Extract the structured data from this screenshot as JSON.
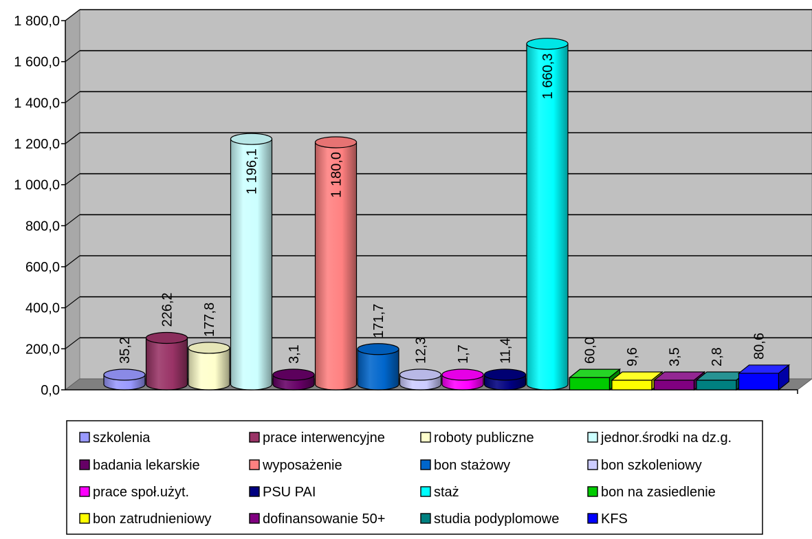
{
  "chart_data": {
    "type": "bar",
    "categories": [
      "szkolenia",
      "prace interwencyjne",
      "roboty publiczne",
      "jednor.środki na dz.g.",
      "badania lekarskie",
      "wyposażenie",
      "bon stażowy",
      "bon szkoleniowy",
      "prace społ.użyt.",
      "PSU PAI",
      "staż",
      "bon na zasiedlenie",
      "bon zatrudnieniowy",
      "dofinansowanie 50+",
      "studia podyplomowe",
      "KFS"
    ],
    "values": [
      35.2,
      226.2,
      177.8,
      1196.1,
      3.1,
      1180.0,
      171.7,
      12.3,
      1.7,
      11.4,
      1660.3,
      60.0,
      9.6,
      3.5,
      2.8,
      80.6
    ],
    "data_labels": [
      "35,2",
      "226,2",
      "177,8",
      "1 196,1",
      "3,1",
      "1 180,0",
      "171,7",
      "12,3",
      "1,7",
      "11,4",
      "1 660,3",
      "60,0",
      "9,6",
      "3,5",
      "2,8",
      "80,6"
    ],
    "shapes": [
      "cylinder",
      "cylinder",
      "cylinder",
      "cylinder",
      "cylinder",
      "cylinder",
      "cylinder",
      "cylinder",
      "cylinder",
      "cylinder",
      "cylinder",
      "box",
      "box",
      "box",
      "box",
      "box"
    ],
    "colors": [
      "#9999FF",
      "#993366",
      "#FFFFCC",
      "#CCFFFF",
      "#660066",
      "#FF8080",
      "#0066CC",
      "#CCCCFF",
      "#FF00FF",
      "#000080",
      "#00FFFF",
      "#00CC00",
      "#FFFF00",
      "#800080",
      "#008080",
      "#0000FF"
    ],
    "ytick_labels": [
      "0,0",
      "200,0",
      "400,0",
      "600,0",
      "800,0",
      "1 000,0",
      "1 200,0",
      "1 400,0",
      "1 600,0",
      "1 800,0"
    ],
    "ylim": [
      0,
      1800
    ],
    "grid": true,
    "legend_position": "bottom",
    "title": "",
    "xlabel": "",
    "ylabel": ""
  }
}
